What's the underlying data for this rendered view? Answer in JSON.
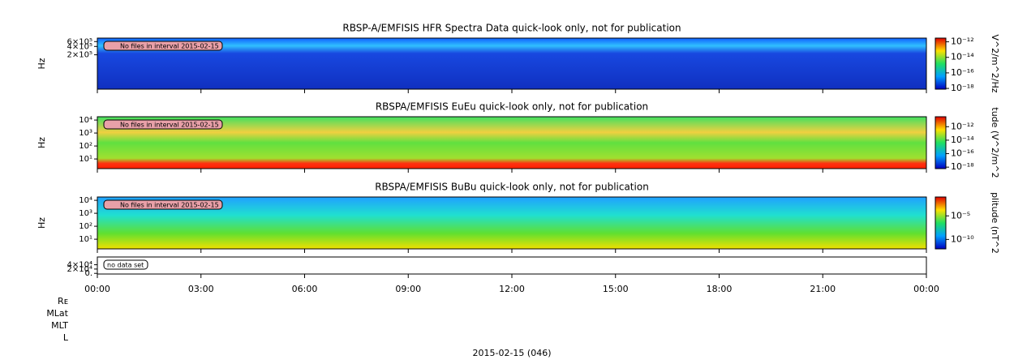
{
  "chart_data": [
    {
      "type": "heatmap",
      "title": "RBSP-A/EMFISIS  HFR Spectra Data quick-look only, not for publication",
      "ylabel": "Hz",
      "log_y": true,
      "ylim": [
        11500,
        800000
      ],
      "yticks": [
        {
          "value": 600000,
          "label": "6×10⁵"
        },
        {
          "value": 400000,
          "label": "4×10⁵"
        },
        {
          "value": 200000,
          "label": "2×10⁵"
        }
      ],
      "annotation": "No files in interval 2015-02-15",
      "colorbar": {
        "label": "V^2/m^2/Hz",
        "clim": [
          8e-19,
          3e-12
        ],
        "ticks": [
          {
            "value": 1e-12,
            "label": "10⁻¹²"
          },
          {
            "value": 1e-14,
            "label": "10⁻¹⁴"
          },
          {
            "value": 1e-16,
            "label": "10⁻¹⁶"
          },
          {
            "value": 1e-18,
            "label": "10⁻¹⁸"
          }
        ]
      }
    },
    {
      "type": "heatmap",
      "title": "RBSPA/EMFISIS  EuEu quick-look only, not for publication",
      "ylabel": "Hz",
      "log_y": true,
      "ylim": [
        1.8,
        18000
      ],
      "yticks": [
        {
          "value": 10000,
          "label": "10⁴"
        },
        {
          "value": 1000,
          "label": "10³"
        },
        {
          "value": 100,
          "label": "10²"
        },
        {
          "value": 10,
          "label": "10¹"
        }
      ],
      "annotation": "No files in interval 2015-02-15",
      "colorbar": {
        "label": "tude (V^2/m^2",
        "clim": [
          6e-19,
          3e-11
        ],
        "ticks": [
          {
            "value": 1e-12,
            "label": "10⁻¹²"
          },
          {
            "value": 1e-14,
            "label": "10⁻¹⁴"
          },
          {
            "value": 1e-16,
            "label": "10⁻¹⁶"
          },
          {
            "value": 1e-18,
            "label": "10⁻¹⁸"
          }
        ]
      }
    },
    {
      "type": "heatmap",
      "title": "RBSPA/EMFISIS  BuBu quick-look only, not for publication",
      "ylabel": "Hz",
      "log_y": true,
      "ylim": [
        1.8,
        18000
      ],
      "yticks": [
        {
          "value": 10000,
          "label": "10⁴"
        },
        {
          "value": 1000,
          "label": "10³"
        },
        {
          "value": 100,
          "label": "10²"
        },
        {
          "value": 10,
          "label": "10¹"
        }
      ],
      "annotation": "No files in interval 2015-02-15",
      "colorbar": {
        "label": "plitude (nT^2",
        "clim": [
          1e-12,
          0.1
        ],
        "ticks": [
          {
            "value": 1e-05,
            "label": "10⁻⁵"
          },
          {
            "value": 1e-10,
            "label": "10⁻¹⁰"
          }
        ]
      }
    },
    {
      "type": "empty",
      "log_y": false,
      "ylim": [
        -3000,
        76000
      ],
      "yticks": [
        {
          "value": 40000,
          "label": "4×10⁴"
        },
        {
          "value": 20000,
          "label": "2×10⁴"
        },
        {
          "value": 0,
          "label": "0."
        }
      ],
      "annotation": "no data set"
    }
  ],
  "x_axis": {
    "xlim": [
      0,
      24
    ],
    "label": "2015-02-15 (046)",
    "xticks": [
      {
        "value": 0,
        "label": "00:00"
      },
      {
        "value": 3,
        "label": "03:00"
      },
      {
        "value": 6,
        "label": "06:00"
      },
      {
        "value": 9,
        "label": "09:00"
      },
      {
        "value": 12,
        "label": "12:00"
      },
      {
        "value": 15,
        "label": "15:00"
      },
      {
        "value": 18,
        "label": "18:00"
      },
      {
        "value": 21,
        "label": "21:00"
      },
      {
        "value": 24,
        "label": "00:00"
      }
    ]
  },
  "ephemeris_labels": [
    "Rᴇ",
    "MLat",
    "MLT",
    "L"
  ]
}
